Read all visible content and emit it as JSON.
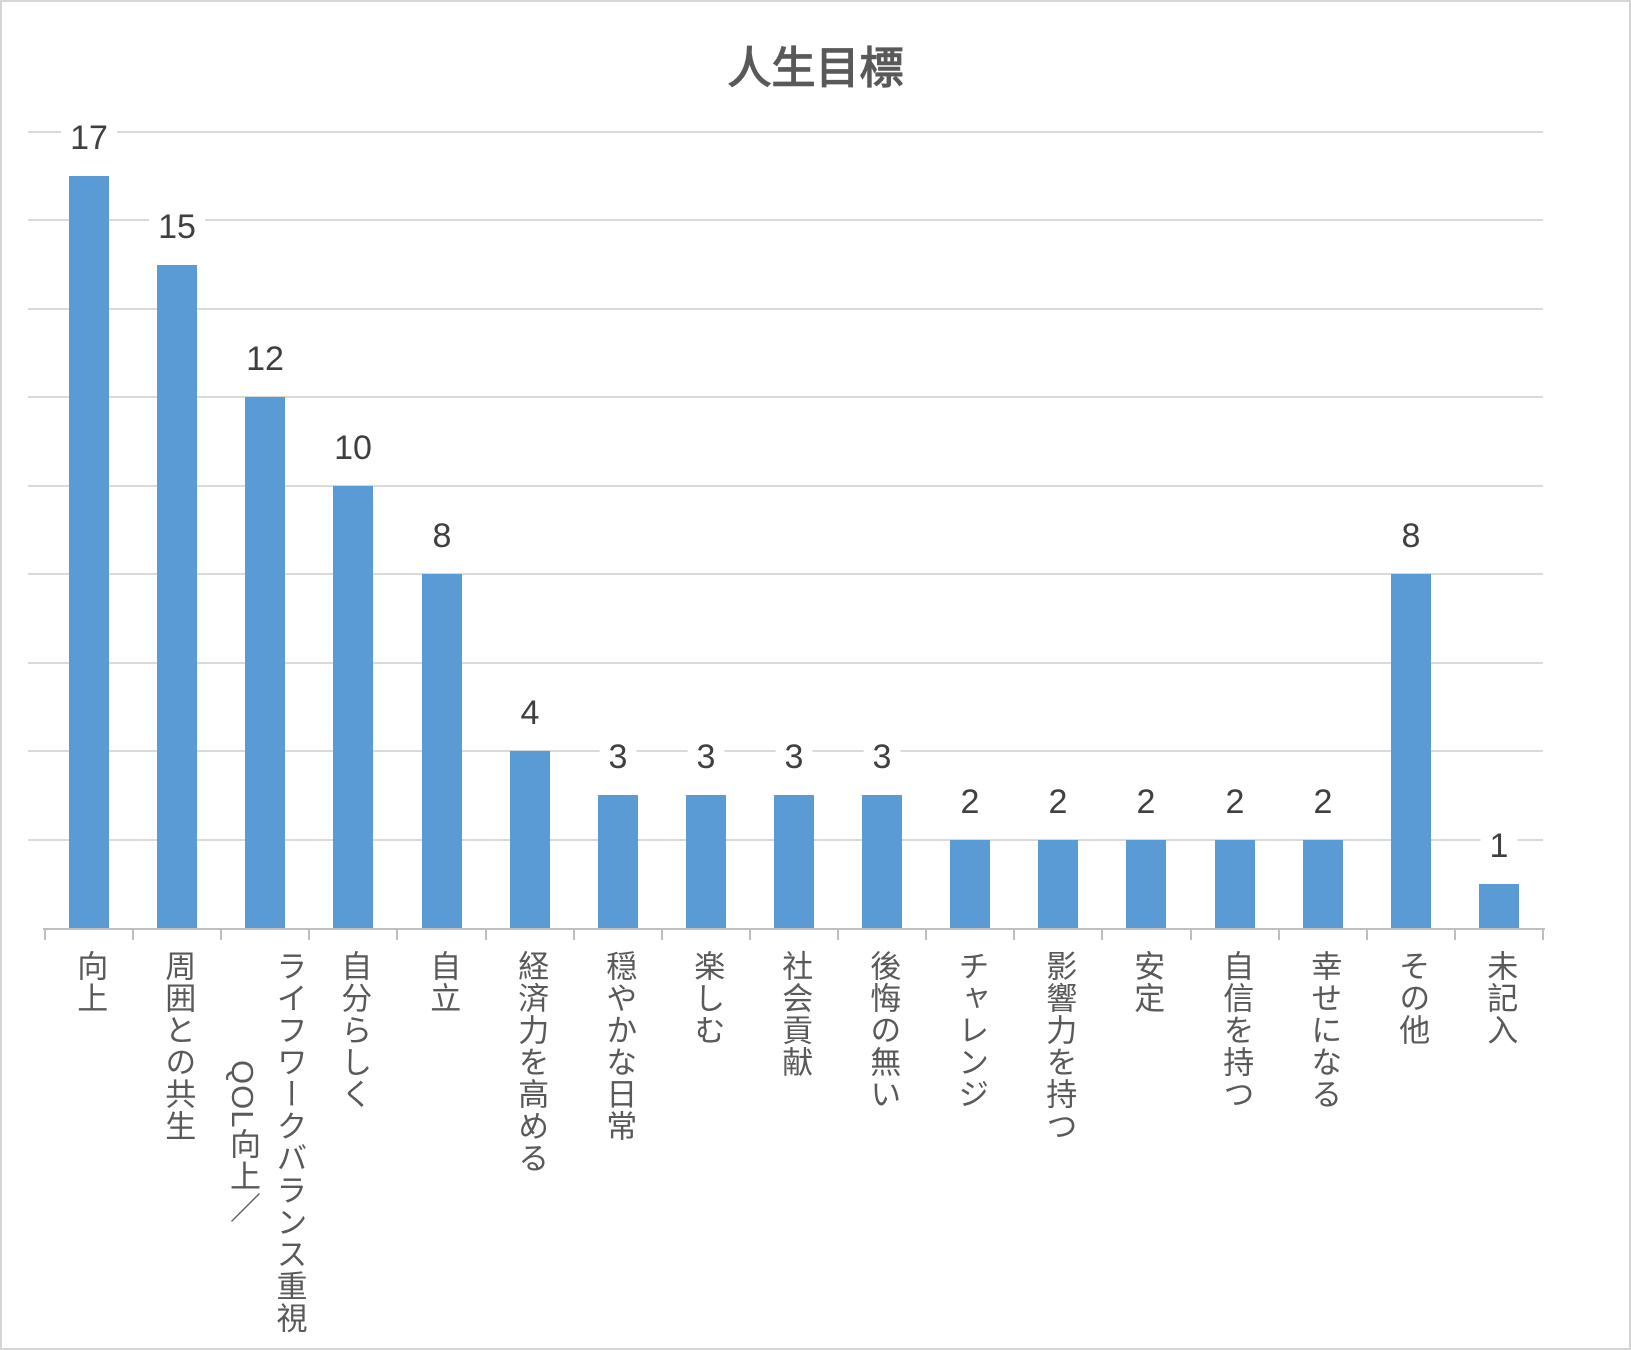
{
  "chart_data": {
    "type": "bar",
    "title": "人生目標",
    "categories": [
      "向上",
      "周囲との共生",
      "ライフワークバランス重視\nQOL向上／",
      "自分らしく",
      "自立",
      "経済力を高める",
      "穏やかな日常",
      "楽しむ",
      "社会貢献",
      "後悔の無い",
      "チャレンジ",
      "影響力を持つ",
      "安定",
      "自信を持つ",
      "幸せになる",
      "その他",
      "未記入"
    ],
    "values": [
      17,
      15,
      12,
      10,
      8,
      4,
      3,
      3,
      3,
      3,
      2,
      2,
      2,
      2,
      2,
      8,
      1
    ],
    "xlabel": "",
    "ylabel": "",
    "ylim": [
      0,
      18
    ],
    "gridline_step": 2,
    "grid": true,
    "legend": false,
    "data_labels": true,
    "bar_color": "#5b9bd5",
    "gridline_color": "#d9d9d9",
    "axis_color": "#bfbfbf",
    "title_color": "#595959",
    "value_label_color": "#3f3f3f",
    "category_label_color": "#595959"
  }
}
